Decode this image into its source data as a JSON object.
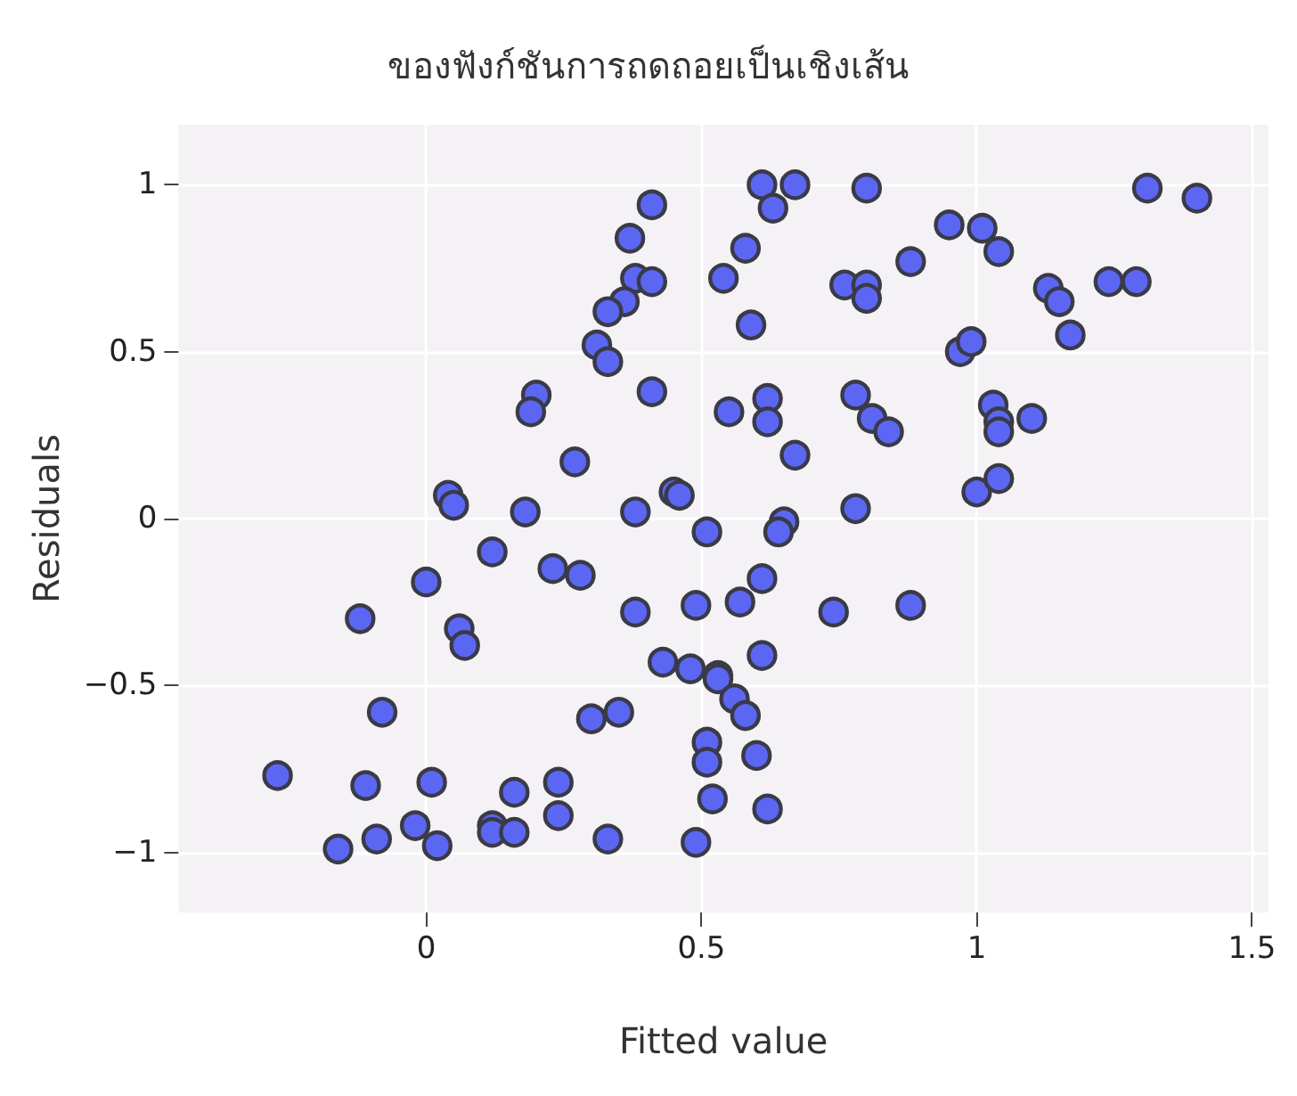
{
  "chart_data": {
    "type": "scatter",
    "title": "ของฟังก์ชันการถดถอยเป็นเชิงเส้น",
    "xlabel": "Fitted value",
    "ylabel": "Residuals",
    "xlim": [
      -0.45,
      1.53
    ],
    "ylim": [
      -1.18,
      1.18
    ],
    "xticks": [
      0,
      0.5,
      1,
      1.5
    ],
    "yticks": [
      {
        "value": -1,
        "label": "−1"
      },
      {
        "value": -0.5,
        "label": "−0.5"
      },
      0,
      0.5,
      1
    ],
    "grid": true,
    "marker": "circle",
    "series": [
      {
        "color": "#5b67f2",
        "x": [
          0.41,
          0.37,
          0.38,
          0.41,
          0.36,
          0.33,
          0.31,
          0.33,
          0.41,
          0.2,
          0.19,
          0.27,
          0.04,
          0.05,
          0.18,
          0.38,
          0.45,
          0.46,
          0.61,
          0.67,
          0.63,
          0.8,
          0.58,
          0.54,
          0.59,
          0.95,
          1.01,
          1.04,
          0.88,
          0.76,
          0.8,
          0.8,
          1.31,
          1.4,
          1.13,
          1.15,
          1.17,
          1.24,
          1.29,
          0.97,
          0.99,
          0.55,
          0.62,
          0.62,
          0.67,
          0.78,
          0.81,
          0.84,
          1.03,
          1.04,
          1.04,
          1.1,
          1.0,
          1.04,
          0.78,
          0.65,
          0.64,
          0.51,
          0.12,
          0.23,
          0.28,
          0.0,
          0.38,
          0.49,
          -0.12,
          0.06,
          0.07,
          0.43,
          0.48,
          0.53,
          -0.08,
          0.3,
          0.35,
          0.51,
          0.51,
          0.52,
          -0.27,
          -0.11,
          0.01,
          0.16,
          0.24,
          0.24,
          0.12,
          0.12,
          0.16,
          -0.02,
          -0.09,
          0.02,
          -0.16,
          0.33,
          0.49,
          0.61,
          0.57,
          0.74,
          0.88,
          0.61,
          0.53,
          0.56,
          0.58,
          0.6,
          0.62
        ],
        "values": [
          0.94,
          0.84,
          0.72,
          0.71,
          0.65,
          0.62,
          0.52,
          0.47,
          0.38,
          0.37,
          0.32,
          0.17,
          0.07,
          0.04,
          0.02,
          0.02,
          0.08,
          0.07,
          1.0,
          1.0,
          0.93,
          0.99,
          0.81,
          0.72,
          0.58,
          0.88,
          0.87,
          0.8,
          0.77,
          0.7,
          0.7,
          0.66,
          0.99,
          0.96,
          0.69,
          0.65,
          0.55,
          0.71,
          0.71,
          0.5,
          0.53,
          0.32,
          0.36,
          0.29,
          0.19,
          0.37,
          0.3,
          0.26,
          0.34,
          0.29,
          0.26,
          0.3,
          0.08,
          0.12,
          0.03,
          -0.01,
          -0.04,
          -0.04,
          -0.1,
          -0.15,
          -0.17,
          -0.19,
          -0.28,
          -0.26,
          -0.3,
          -0.33,
          -0.38,
          -0.43,
          -0.45,
          -0.47,
          -0.58,
          -0.6,
          -0.58,
          -0.67,
          -0.73,
          -0.84,
          -0.77,
          -0.8,
          -0.79,
          -0.82,
          -0.79,
          -0.89,
          -0.92,
          -0.94,
          -0.94,
          -0.92,
          -0.96,
          -0.98,
          -0.99,
          -0.96,
          -0.97,
          -0.18,
          -0.25,
          -0.28,
          -0.26,
          -0.41,
          -0.48,
          -0.54,
          -0.59,
          -0.71,
          -0.87
        ]
      }
    ]
  }
}
